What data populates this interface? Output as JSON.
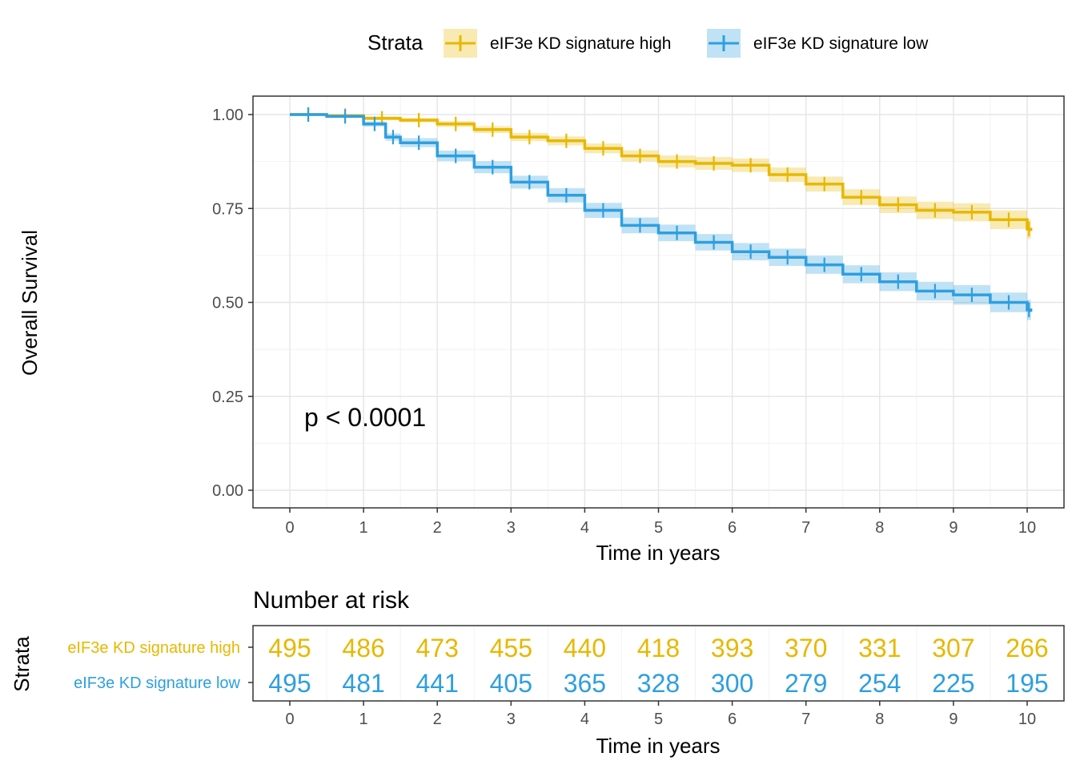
{
  "colors": {
    "high": "#E7B800",
    "low": "#2E9FDF",
    "grid_major": "#e6e6e6",
    "grid_minor": "#f2f2f2",
    "axis": "#333333"
  },
  "legend": {
    "title": "Strata",
    "entries": [
      "eIF3e KD signature high",
      "eIF3e KD signature low"
    ]
  },
  "annotation": {
    "pvalue": "p < 0.0001"
  },
  "chart_data": [
    {
      "type": "line",
      "subtype": "kaplan-meier",
      "xlabel": "Time in years",
      "ylabel": "Overall Survival",
      "xlim": [
        0,
        10
      ],
      "ylim": [
        0,
        1
      ],
      "xticks": [
        "0",
        "1",
        "2",
        "3",
        "4",
        "5",
        "6",
        "7",
        "8",
        "9",
        "10"
      ],
      "yticks": [
        "0.00",
        "0.25",
        "0.50",
        "0.75",
        "1.00"
      ],
      "legend_position": "top",
      "series": [
        {
          "name": "eIF3e KD signature high",
          "x": [
            0,
            0.5,
            1,
            1.5,
            2,
            2.5,
            3,
            3.5,
            4,
            4.5,
            5,
            5.5,
            6,
            6.5,
            7,
            7.5,
            8,
            8.5,
            9,
            9.5,
            10,
            10.05
          ],
          "y": [
            1.0,
            0.997,
            0.99,
            0.985,
            0.975,
            0.96,
            0.94,
            0.93,
            0.91,
            0.89,
            0.875,
            0.87,
            0.865,
            0.84,
            0.815,
            0.78,
            0.76,
            0.745,
            0.74,
            0.72,
            0.695,
            0.69
          ],
          "ci_halfwidth": [
            0,
            0.002,
            0.005,
            0.006,
            0.008,
            0.009,
            0.011,
            0.012,
            0.013,
            0.015,
            0.016,
            0.017,
            0.018,
            0.019,
            0.02,
            0.021,
            0.022,
            0.023,
            0.024,
            0.025,
            0.026,
            0.026
          ]
        },
        {
          "name": "eIF3e KD signature low",
          "x": [
            0,
            0.5,
            1,
            1.3,
            1.5,
            2,
            2.5,
            3,
            3.5,
            4,
            4.5,
            5,
            5.5,
            6,
            6.5,
            7,
            7.5,
            8,
            8.5,
            9,
            9.5,
            10,
            10.05
          ],
          "y": [
            1.0,
            0.995,
            0.975,
            0.94,
            0.925,
            0.89,
            0.86,
            0.82,
            0.785,
            0.745,
            0.705,
            0.685,
            0.66,
            0.635,
            0.62,
            0.6,
            0.575,
            0.555,
            0.53,
            0.52,
            0.5,
            0.48,
            0.475
          ],
          "ci_halfwidth": [
            0,
            0.003,
            0.007,
            0.01,
            0.012,
            0.014,
            0.016,
            0.017,
            0.019,
            0.02,
            0.021,
            0.022,
            0.022,
            0.023,
            0.023,
            0.024,
            0.024,
            0.025,
            0.025,
            0.026,
            0.026,
            0.027,
            0.027
          ]
        }
      ]
    },
    {
      "type": "table",
      "title": "Number at risk",
      "xlabel": "Time in years",
      "ylabel": "Strata",
      "xticks": [
        "0",
        "1",
        "2",
        "3",
        "4",
        "5",
        "6",
        "7",
        "8",
        "9",
        "10"
      ],
      "rows": [
        {
          "name": "eIF3e KD signature high",
          "values": [
            495,
            486,
            473,
            455,
            440,
            418,
            393,
            370,
            331,
            307,
            266
          ]
        },
        {
          "name": "eIF3e KD signature low",
          "values": [
            495,
            481,
            441,
            405,
            365,
            328,
            300,
            279,
            254,
            225,
            195
          ]
        }
      ]
    }
  ]
}
